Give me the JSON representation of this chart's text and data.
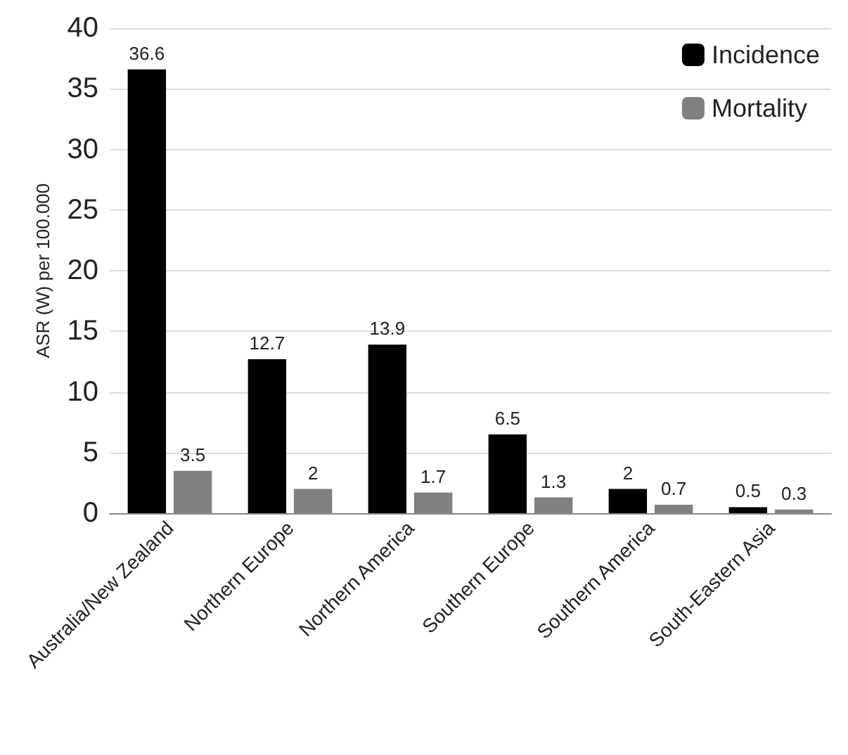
{
  "chart_data": {
    "type": "bar",
    "ylabel": "ASR (W) per 100.000",
    "categories": [
      "Australia/New Zealand",
      "Northern Europe",
      "Northern America",
      "Southern Europe",
      "Southern America",
      "South-Eastern Asia"
    ],
    "series": [
      {
        "name": "Incidence",
        "color": "#000000",
        "values": [
          36.6,
          12.7,
          13.9,
          6.5,
          2,
          0.5
        ]
      },
      {
        "name": "Mortality",
        "color": "#808080",
        "values": [
          3.5,
          2,
          1.7,
          1.3,
          0.7,
          0.3
        ]
      }
    ],
    "ylim": [
      0,
      40
    ],
    "yticks": [
      0,
      5,
      10,
      15,
      20,
      25,
      30,
      35,
      40
    ],
    "grid": "y",
    "legend": "top right",
    "data_labels": true
  }
}
